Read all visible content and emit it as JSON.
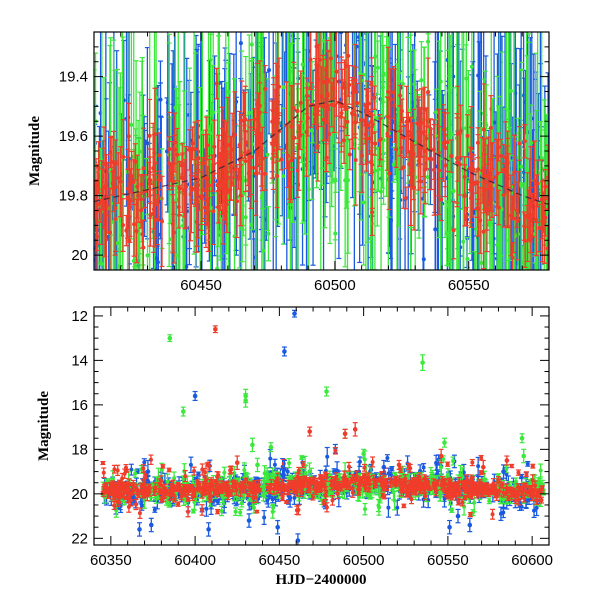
{
  "figure": {
    "colors": {
      "blue": "#1a5ae0",
      "green": "#3de83d",
      "red": "#f03c2a",
      "trend": "#1f1f3f",
      "axis": "#000000"
    }
  },
  "chart_data": [
    {
      "type": "scatter",
      "title": "",
      "xlabel": "",
      "ylabel": "Magnitude",
      "xlim": [
        60410,
        60580
      ],
      "ylim": [
        20.05,
        19.25
      ],
      "y_inverted": true,
      "xticks": [
        60450,
        60500,
        60550
      ],
      "yticks": [
        19.4,
        19.6,
        19.8,
        20
      ],
      "ytick_labels": [
        "19.4",
        "19.6",
        "19.8",
        "20"
      ],
      "grid": false,
      "series": [
        {
          "color": "blue",
          "description_free": true,
          "x_range": [
            60410,
            60580
          ],
          "typical_y": [
            19.3,
            20.05
          ],
          "error_bar": [
            0.05,
            0.4
          ]
        },
        {
          "color": "green",
          "x_range": [
            60410,
            60580
          ],
          "typical_y": [
            19.3,
            20.05
          ],
          "error_bar": [
            0.05,
            0.35
          ]
        },
        {
          "color": "red",
          "x_range": [
            60410,
            60580
          ],
          "typical_y": [
            19.35,
            20.0
          ],
          "error_bar": [
            0.03,
            0.2
          ]
        }
      ],
      "trend": {
        "x": [
          60410,
          60430,
          60450,
          60470,
          60490,
          60500,
          60510,
          60530,
          60550,
          60570,
          60580
        ],
        "y": [
          19.82,
          19.78,
          19.74,
          19.65,
          19.5,
          19.48,
          19.52,
          19.62,
          19.72,
          19.8,
          19.83
        ]
      }
    },
    {
      "type": "scatter",
      "title": "",
      "xlabel": "HJD−2400000",
      "ylabel": "Magnitude",
      "xlim": [
        60340,
        60610
      ],
      "ylim": [
        22.3,
        11.6
      ],
      "y_inverted": true,
      "xticks": [
        60350,
        60400,
        60450,
        60500,
        60550,
        60600
      ],
      "yticks": [
        12,
        14,
        16,
        18,
        20,
        22
      ],
      "ytick_labels": [
        "12",
        "14",
        "16",
        "18",
        "20",
        "22"
      ],
      "grid": false,
      "baseline": {
        "x": [
          60345,
          60370,
          60400,
          60430,
          60460,
          60490,
          60500,
          60520,
          60550,
          60580,
          60605
        ],
        "y": [
          19.85,
          19.85,
          19.8,
          19.75,
          19.65,
          19.55,
          19.5,
          19.55,
          19.7,
          19.85,
          19.9
        ]
      },
      "outliers": {
        "blue": [
          {
            "x": 60459,
            "y": 11.9,
            "err": 0.15
          },
          {
            "x": 60453,
            "y": 13.6,
            "err": 0.2
          },
          {
            "x": 60400,
            "y": 15.6,
            "err": 0.2
          },
          {
            "x": 60367,
            "y": 21.6,
            "err": 0.3
          },
          {
            "x": 60374,
            "y": 21.4,
            "err": 0.3
          },
          {
            "x": 60408,
            "y": 21.6,
            "err": 0.3
          },
          {
            "x": 60432,
            "y": 21.2,
            "err": 0.3
          },
          {
            "x": 60449,
            "y": 21.5,
            "err": 0.3
          },
          {
            "x": 60461,
            "y": 22.1,
            "err": 0.3
          },
          {
            "x": 60551,
            "y": 21.5,
            "err": 0.3
          },
          {
            "x": 60556,
            "y": 21.0,
            "err": 0.3
          },
          {
            "x": 60563,
            "y": 21.4,
            "err": 0.3
          },
          {
            "x": 60372,
            "y": 19.0,
            "err": 0.5
          },
          {
            "x": 60453,
            "y": 18.9,
            "err": 0.4
          },
          {
            "x": 60583,
            "y": 19.0,
            "err": 0.3
          },
          {
            "x": 60512,
            "y": 18.8,
            "err": 0.3
          }
        ],
        "green": [
          {
            "x": 60385,
            "y": 13.0,
            "err": 0.15
          },
          {
            "x": 60393,
            "y": 16.3,
            "err": 0.2
          },
          {
            "x": 60430,
            "y": 15.8,
            "err": 0.3
          },
          {
            "x": 60430,
            "y": 15.6,
            "err": 0.3
          },
          {
            "x": 60434,
            "y": 17.8,
            "err": 0.3
          },
          {
            "x": 60437,
            "y": 18.7,
            "err": 0.3
          },
          {
            "x": 60478,
            "y": 15.4,
            "err": 0.2
          },
          {
            "x": 60535,
            "y": 14.1,
            "err": 0.35
          },
          {
            "x": 60548,
            "y": 17.7,
            "err": 0.2
          },
          {
            "x": 60594,
            "y": 17.5,
            "err": 0.2
          },
          {
            "x": 60595,
            "y": 18.3,
            "err": 0.3
          },
          {
            "x": 60445,
            "y": 17.9,
            "err": 0.2
          },
          {
            "x": 60489,
            "y": 17.3,
            "err": 0.2
          },
          {
            "x": 60500,
            "y": 18.2,
            "err": 0.2
          }
        ],
        "red": [
          {
            "x": 60412,
            "y": 12.6,
            "err": 0.15
          },
          {
            "x": 60468,
            "y": 17.2,
            "err": 0.2
          },
          {
            "x": 60489,
            "y": 17.3,
            "err": 0.2
          },
          {
            "x": 60495,
            "y": 17.1,
            "err": 0.3
          },
          {
            "x": 60546,
            "y": 18.3,
            "err": 0.3
          },
          {
            "x": 60585,
            "y": 18.5,
            "err": 0.2
          },
          {
            "x": 60425,
            "y": 18.6,
            "err": 0.3
          },
          {
            "x": 60521,
            "y": 18.7,
            "err": 0.2
          },
          {
            "x": 60571,
            "y": 18.8,
            "err": 0.3
          }
        ]
      }
    }
  ]
}
